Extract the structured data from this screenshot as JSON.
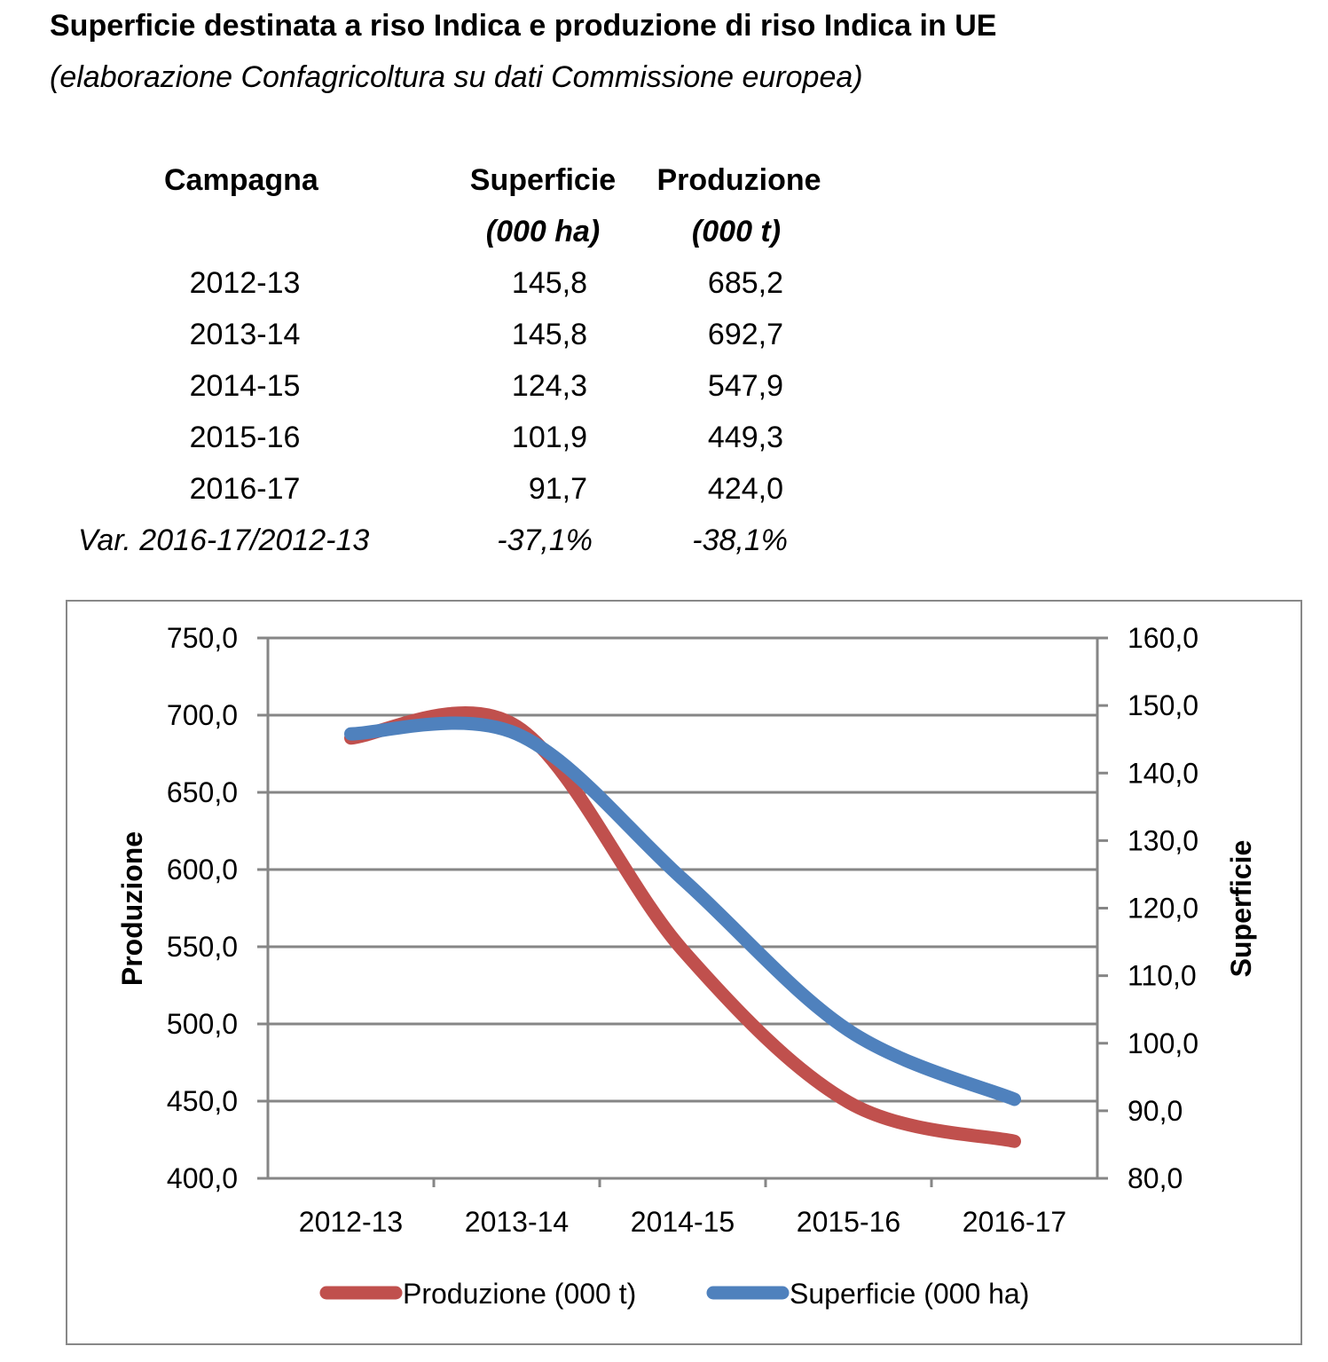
{
  "header": {
    "title": "Superficie destinata a riso Indica e produzione di riso Indica in UE",
    "subtitle": "(elaborazione Confagricoltura su dati Commissione europea)"
  },
  "table": {
    "col_campagna": "Campagna",
    "col_superficie": "Superficie",
    "col_superficie_unit": "(000 ha)",
    "col_produzione": "Produzione",
    "col_produzione_unit": "(000 t)",
    "rows": [
      {
        "campagna": "2012-13",
        "superficie": "145,8",
        "produzione": "685,2"
      },
      {
        "campagna": "2013-14",
        "superficie": "145,8",
        "produzione": "692,7"
      },
      {
        "campagna": "2014-15",
        "superficie": "124,3",
        "produzione": "547,9"
      },
      {
        "campagna": "2015-16",
        "superficie": "101,9",
        "produzione": "449,3"
      },
      {
        "campagna": "2016-17",
        "superficie": "91,7",
        "produzione": "424,0"
      }
    ],
    "var_label": "Var. 2016-17/2012-13",
    "var_superficie": "-37,1%",
    "var_produzione": "-38,1%"
  },
  "chart_data": {
    "type": "line",
    "categories": [
      "2012-13",
      "2013-14",
      "2014-15",
      "2015-16",
      "2016-17"
    ],
    "series": [
      {
        "name": "Produzione (000 t)",
        "axis": "left",
        "color": "#C0504D",
        "values": [
          685.2,
          692.7,
          547.9,
          449.3,
          424.0
        ]
      },
      {
        "name": "Superficie (000 ha)",
        "axis": "right",
        "color": "#4F81BD",
        "values": [
          145.8,
          145.8,
          124.3,
          101.9,
          91.7
        ]
      }
    ],
    "ylabel_left": "Produzione",
    "ylabel_right": "Superficie",
    "ylim_left": [
      400,
      750
    ],
    "ylim_right": [
      80,
      160
    ],
    "yticks_left": [
      "400,0",
      "450,0",
      "500,0",
      "550,0",
      "600,0",
      "650,0",
      "700,0",
      "750,0"
    ],
    "yticks_right": [
      "80,0",
      "90,0",
      "100,0",
      "110,0",
      "120,0",
      "130,0",
      "140,0",
      "150,0",
      "160,0"
    ],
    "grid": true,
    "smooth": true,
    "legend_position": "bottom"
  }
}
